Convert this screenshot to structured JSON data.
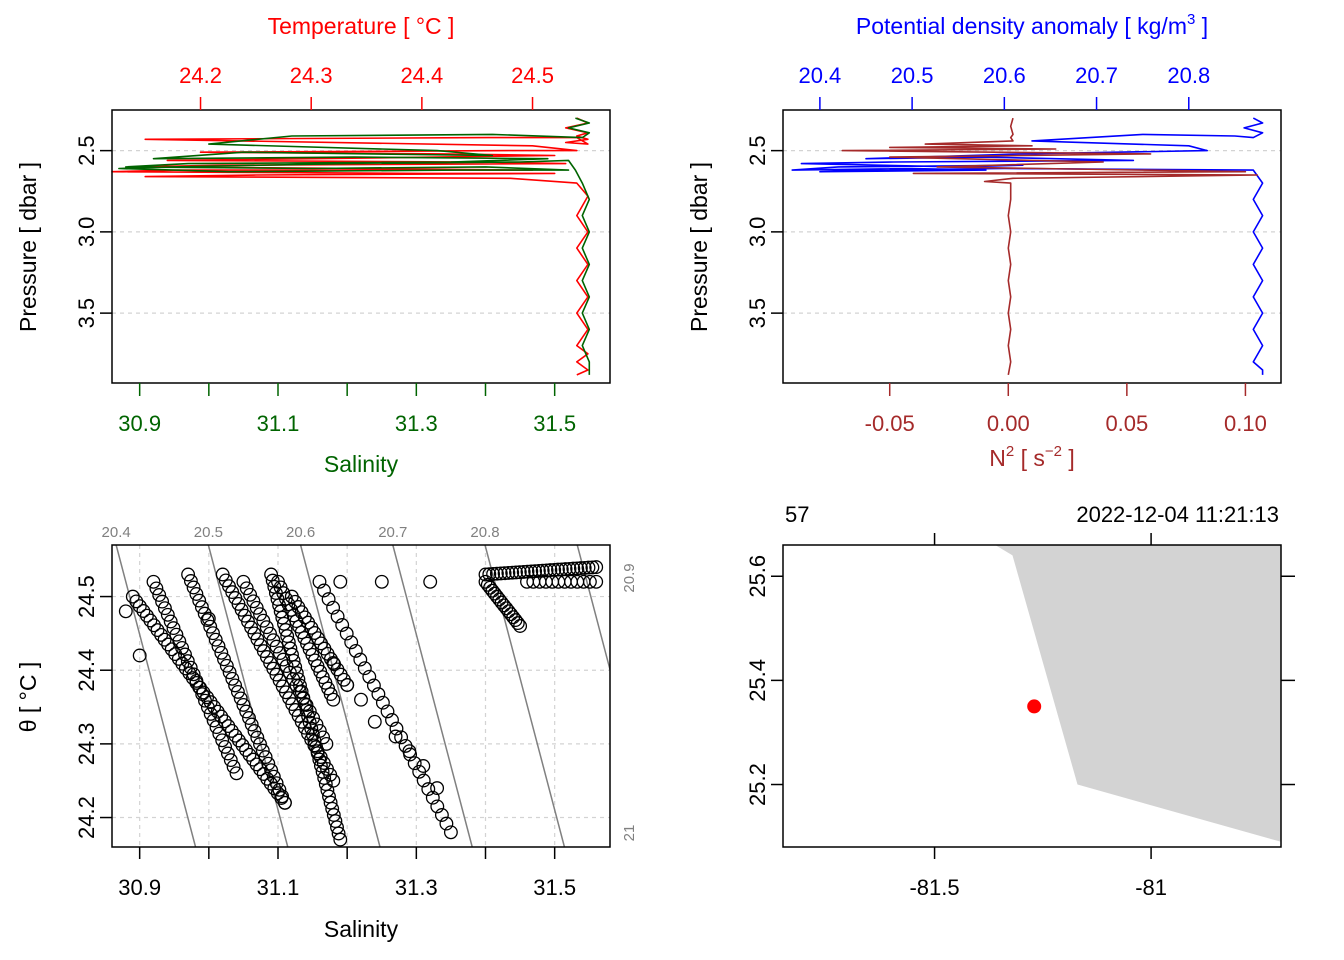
{
  "colors": {
    "temperature": "#ff0000",
    "salinity": "#006400",
    "density": "#0000ff",
    "n2": "#a52a2a",
    "grid": "#d3d3d3",
    "isopycnal": "#808080",
    "land": "#d3d3d3",
    "station": "#ff0000"
  },
  "chart_data": [
    {
      "type": "line",
      "panel": "salinity-temperature-profile",
      "ylabel": "Pressure [ dbar ]",
      "y_reversed": true,
      "ylim": [
        2.25,
        3.93
      ],
      "yticks": [
        "2.5",
        "3.0",
        "3.5"
      ],
      "grid": true,
      "top_axis": {
        "label": "Temperature [ °C ]",
        "lim": [
          24.12,
          24.57
        ],
        "ticks": [
          "24.2",
          "24.3",
          "24.4",
          "24.5"
        ]
      },
      "bottom_axis": {
        "label": "Salinity",
        "lim": [
          30.86,
          31.58
        ],
        "ticks": [
          "30.9",
          "31.1",
          "31.3",
          "31.5"
        ]
      },
      "series": [
        {
          "key": "temperature",
          "axis": "top",
          "x": [
            24.54,
            24.55,
            24.53,
            24.55,
            24.54,
            24.55,
            24.53,
            24.55,
            24.54,
            24.46,
            24.15,
            24.5,
            24.54,
            24.48,
            24.2,
            24.42,
            24.52,
            24.3,
            24.17,
            24.45,
            24.53,
            24.22,
            24.14,
            24.35,
            24.5,
            24.18,
            24.12,
            24.4,
            24.52,
            24.25,
            24.15,
            24.48,
            24.54,
            24.55,
            24.54,
            24.55,
            24.54,
            24.55,
            24.54,
            24.55,
            24.54,
            24.55,
            24.54,
            24.55,
            24.54,
            24.55,
            24.54
          ],
          "y": [
            2.3,
            2.33,
            2.36,
            2.39,
            2.41,
            2.43,
            2.45,
            2.46,
            2.42,
            2.42,
            2.43,
            2.47,
            2.5,
            2.5,
            2.51,
            2.52,
            2.53,
            2.55,
            2.56,
            2.57,
            2.58,
            2.59,
            2.6,
            2.61,
            2.62,
            2.62,
            2.63,
            2.64,
            2.64,
            2.65,
            2.66,
            2.67,
            2.7,
            2.78,
            2.9,
            3.0,
            3.1,
            3.2,
            3.3,
            3.4,
            3.5,
            3.6,
            3.7,
            3.75,
            3.8,
            3.85,
            3.88
          ]
        },
        {
          "key": "salinity",
          "axis": "bottom",
          "x": [
            31.53,
            31.55,
            31.52,
            31.55,
            31.54,
            31.41,
            31.12,
            31.0,
            31.33,
            31.41,
            31.05,
            30.92,
            31.21,
            31.49,
            31.35,
            30.97,
            30.88,
            31.15,
            31.4,
            31.52,
            31.36,
            31.03,
            30.87,
            30.95,
            31.2,
            31.45,
            31.52,
            31.53,
            31.54,
            31.55,
            31.54,
            31.55,
            31.54,
            31.55,
            31.54,
            31.55,
            31.54,
            31.55,
            31.54,
            31.55,
            31.55
          ],
          "y": [
            2.3,
            2.33,
            2.36,
            2.39,
            2.42,
            2.4,
            2.41,
            2.46,
            2.5,
            2.53,
            2.51,
            2.55,
            2.54,
            2.55,
            2.57,
            2.58,
            2.6,
            2.61,
            2.6,
            2.62,
            2.62,
            2.63,
            2.61,
            2.6,
            2.58,
            2.57,
            2.56,
            2.62,
            2.7,
            2.8,
            2.9,
            3.0,
            3.1,
            3.2,
            3.3,
            3.4,
            3.5,
            3.6,
            3.7,
            3.8,
            3.88
          ]
        }
      ]
    },
    {
      "type": "line",
      "panel": "density-n2-profile",
      "ylabel": "Pressure [ dbar ]",
      "y_reversed": true,
      "ylim": [
        2.25,
        3.93
      ],
      "yticks": [
        "2.5",
        "3.0",
        "3.5"
      ],
      "grid": true,
      "top_axis": {
        "label": "Potential density anomaly [ kg/m",
        "label_sup": "3",
        "label_end": " ]",
        "lim": [
          20.36,
          20.9
        ],
        "ticks": [
          "20.4",
          "20.5",
          "20.6",
          "20.7",
          "20.8"
        ]
      },
      "bottom_axis": {
        "label": "N",
        "label_sup": "2",
        "label_mid": " [ s",
        "label_sup2": "−2",
        "label_end": " ]",
        "lim": [
          -0.095,
          0.115
        ],
        "ticks": [
          "-0.05",
          "0.00",
          "0.05",
          "0.10"
        ]
      },
      "series": [
        {
          "key": "density",
          "axis": "top",
          "x": [
            20.87,
            20.88,
            20.86,
            20.88,
            20.87,
            20.85,
            20.75,
            20.63,
            20.8,
            20.82,
            20.62,
            20.45,
            20.58,
            20.74,
            20.48,
            20.38,
            20.55,
            20.62,
            20.42,
            20.37,
            20.5,
            20.58,
            20.4,
            20.45,
            20.6,
            20.87,
            20.88,
            20.87,
            20.88,
            20.87,
            20.88,
            20.87,
            20.88,
            20.87,
            20.88,
            20.87,
            20.88,
            20.87,
            20.88,
            20.88
          ],
          "y": [
            2.3,
            2.33,
            2.36,
            2.39,
            2.42,
            2.41,
            2.4,
            2.44,
            2.47,
            2.5,
            2.52,
            2.55,
            2.54,
            2.56,
            2.57,
            2.58,
            2.6,
            2.59,
            2.6,
            2.62,
            2.61,
            2.62,
            2.63,
            2.62,
            2.61,
            2.62,
            2.7,
            2.8,
            2.9,
            3.0,
            3.1,
            3.2,
            3.3,
            3.4,
            3.5,
            3.6,
            3.7,
            3.8,
            3.85,
            3.88
          ]
        },
        {
          "key": "n2",
          "axis": "bottom",
          "x": [
            0.002,
            0.001,
            0.002,
            0.001,
            0.002,
            -0.035,
            0.01,
            -0.05,
            0.02,
            -0.07,
            0.06,
            -0.05,
            0.04,
            -0.03,
            0.1,
            -0.04,
            0.105,
            0.002,
            -0.01,
            0.001,
            0.001,
            0.0,
            0.001,
            0.0,
            0.001,
            0.0,
            0.001,
            0.0,
            0.001,
            0.0,
            0.001,
            0.0
          ],
          "y": [
            2.3,
            2.35,
            2.4,
            2.42,
            2.44,
            2.46,
            2.47,
            2.48,
            2.49,
            2.5,
            2.52,
            2.54,
            2.57,
            2.6,
            2.63,
            2.64,
            2.65,
            2.67,
            2.69,
            2.7,
            2.8,
            2.9,
            3.0,
            3.1,
            3.2,
            3.3,
            3.4,
            3.5,
            3.6,
            3.7,
            3.8,
            3.88
          ]
        }
      ]
    },
    {
      "type": "scatter",
      "panel": "ts-diagram",
      "xlabel": "Salinity",
      "ylabel": "θ [ °C ]",
      "xlim": [
        30.86,
        31.58
      ],
      "ylim": [
        24.16,
        24.57
      ],
      "xticks": [
        "30.9",
        "31.1",
        "31.3",
        "31.5"
      ],
      "yticks": [
        "24.2",
        "24.3",
        "24.4",
        "24.5"
      ],
      "grid": true,
      "isopycnal_labels_top": [
        "20.4",
        "20.5",
        "20.6",
        "20.7",
        "20.8"
      ],
      "isopycnal_labels_right": [
        "20.9",
        "21"
      ],
      "isopycnals": [
        20.4,
        20.5,
        20.6,
        20.7,
        20.8,
        20.9,
        21.0
      ],
      "point_clusters": [
        {
          "from": [
            30.89,
            24.5
          ],
          "to": [
            31.11,
            24.22
          ],
          "count": 44
        },
        {
          "from": [
            30.92,
            24.52
          ],
          "to": [
            31.04,
            24.26
          ],
          "count": 30
        },
        {
          "from": [
            30.97,
            24.53
          ],
          "to": [
            31.11,
            24.22
          ],
          "count": 36
        },
        {
          "from": [
            31.02,
            24.53
          ],
          "to": [
            31.18,
            24.25
          ],
          "count": 36
        },
        {
          "from": [
            31.05,
            24.52
          ],
          "to": [
            31.17,
            24.3
          ],
          "count": 26
        },
        {
          "from": [
            31.09,
            24.53
          ],
          "to": [
            31.19,
            24.17
          ],
          "count": 44
        },
        {
          "from": [
            31.1,
            24.52
          ],
          "to": [
            31.18,
            24.36
          ],
          "count": 22
        },
        {
          "from": [
            31.12,
            24.5
          ],
          "to": [
            31.2,
            24.38
          ],
          "count": 18
        },
        {
          "from": [
            31.16,
            24.52
          ],
          "to": [
            31.35,
            24.18
          ],
          "count": 30
        },
        {
          "from": [
            31.4,
            24.52
          ],
          "to": [
            31.45,
            24.46
          ],
          "count": 16
        },
        {
          "from": [
            31.4,
            24.53
          ],
          "to": [
            31.56,
            24.54
          ],
          "count": 30
        },
        {
          "from": [
            31.46,
            24.52
          ],
          "to": [
            31.56,
            24.52
          ],
          "count": 12
        }
      ],
      "scattered_points": [
        [
          31.19,
          24.52
        ],
        [
          31.25,
          24.52
        ],
        [
          31.32,
          24.52
        ],
        [
          31.24,
          24.33
        ],
        [
          31.27,
          24.31
        ],
        [
          31.29,
          24.29
        ],
        [
          31.31,
          24.27
        ],
        [
          31.33,
          24.24
        ],
        [
          31.2,
          24.38
        ],
        [
          31.22,
          24.36
        ],
        [
          31.18,
          24.41
        ],
        [
          30.9,
          24.42
        ],
        [
          30.88,
          24.48
        ],
        [
          31.0,
          24.47
        ]
      ]
    },
    {
      "type": "map",
      "panel": "station-map",
      "station_label": "57",
      "date_label": "2022-12-04 11:21:13",
      "xlim": [
        -81.85,
        -80.7
      ],
      "ylim": [
        25.08,
        25.66
      ],
      "xticks": [
        {
          "value": -81.5,
          "label": "-81.5"
        },
        {
          "value": -81.0,
          "label": "-81"
        }
      ],
      "yticks": [
        {
          "value": 25.6,
          "label": "25.6"
        },
        {
          "value": 25.4,
          "label": "25.4"
        },
        {
          "value": 25.2,
          "label": "25.2"
        }
      ],
      "station": {
        "lon": -81.27,
        "lat": 25.35
      },
      "land_polygon": [
        [
          -81.36,
          25.66
        ],
        [
          -81.32,
          25.64
        ],
        [
          -81.17,
          25.2
        ],
        [
          -80.7,
          25.09
        ],
        [
          -80.7,
          25.66
        ]
      ]
    }
  ]
}
